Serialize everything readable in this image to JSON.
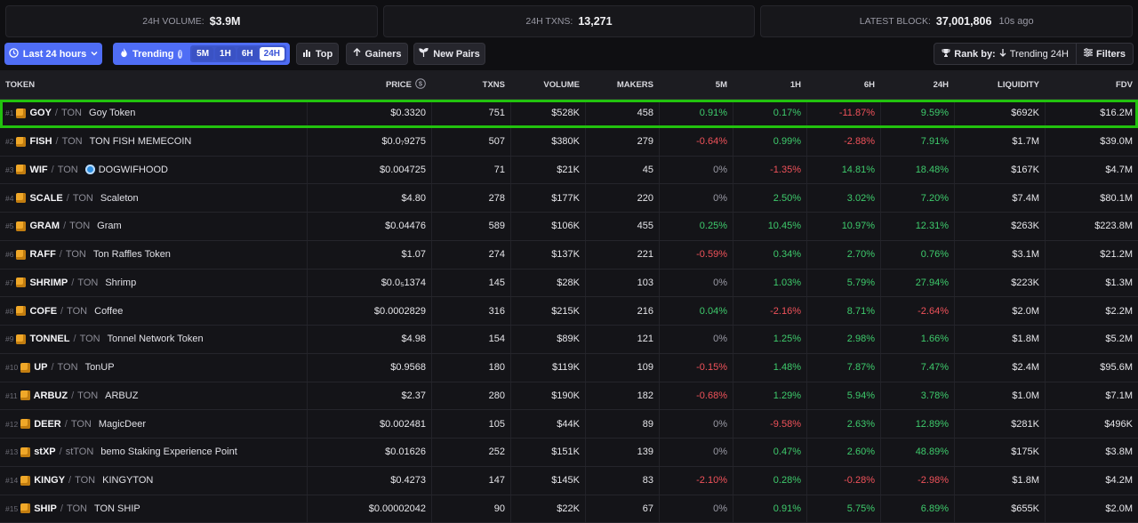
{
  "stats": {
    "volume_label": "24H VOLUME:",
    "volume_value": "$3.9M",
    "txns_label": "24H TXNS:",
    "txns_value": "13,271",
    "block_label": "LATEST BLOCK:",
    "block_value": "37,001,806",
    "block_ago": "10s ago"
  },
  "toolbar": {
    "timeframe": "Last 24 hours",
    "trending_label": "Trending",
    "trending_options": [
      "5M",
      "1H",
      "6H",
      "24H"
    ],
    "trending_active": "24H",
    "top_label": "Top",
    "gainers_label": "Gainers",
    "new_pairs_label": "New Pairs",
    "rank_by_label": "Rank by:",
    "rank_by_value": "Trending 24H",
    "filters_label": "Filters"
  },
  "table": {
    "headers": [
      "TOKEN",
      "PRICE",
      "TXNS",
      "VOLUME",
      "MAKERS",
      "5M",
      "1H",
      "6H",
      "24H",
      "LIQUIDITY",
      "FDV"
    ],
    "rows": [
      {
        "rank": "#1",
        "symbol": "GOY",
        "quote": "TON",
        "name": "Goy Token",
        "price": "$0.3320",
        "txns": "751",
        "volume": "$528K",
        "makers": "458",
        "m5": "0.91%",
        "h1": "0.17%",
        "h6": "-11.87%",
        "h24": "9.59%",
        "liquidity": "$692K",
        "fdv": "$16.2M"
      },
      {
        "rank": "#2",
        "symbol": "FISH",
        "quote": "TON",
        "name": "TON FISH MEMECOIN",
        "price": "$0.0₇9275",
        "txns": "507",
        "volume": "$380K",
        "makers": "279",
        "m5": "-0.64%",
        "h1": "0.99%",
        "h6": "-2.88%",
        "h24": "7.91%",
        "liquidity": "$1.7M",
        "fdv": "$39.0M"
      },
      {
        "rank": "#3",
        "symbol": "WIF",
        "quote": "TON",
        "name": "DOGWIFHOOD",
        "price": "$0.004725",
        "txns": "71",
        "volume": "$21K",
        "makers": "45",
        "m5": "0%",
        "h1": "-1.35%",
        "h6": "14.81%",
        "h24": "18.48%",
        "liquidity": "$167K",
        "fdv": "$4.7M"
      },
      {
        "rank": "#4",
        "symbol": "SCALE",
        "quote": "TON",
        "name": "Scaleton",
        "price": "$4.80",
        "txns": "278",
        "volume": "$177K",
        "makers": "220",
        "m5": "0%",
        "h1": "2.50%",
        "h6": "3.02%",
        "h24": "7.20%",
        "liquidity": "$7.4M",
        "fdv": "$80.1M"
      },
      {
        "rank": "#5",
        "symbol": "GRAM",
        "quote": "TON",
        "name": "Gram",
        "price": "$0.04476",
        "txns": "589",
        "volume": "$106K",
        "makers": "455",
        "m5": "0.25%",
        "h1": "10.45%",
        "h6": "10.97%",
        "h24": "12.31%",
        "liquidity": "$263K",
        "fdv": "$223.8M"
      },
      {
        "rank": "#6",
        "symbol": "RAFF",
        "quote": "TON",
        "name": "Ton Raffles Token",
        "price": "$1.07",
        "txns": "274",
        "volume": "$137K",
        "makers": "221",
        "m5": "-0.59%",
        "h1": "0.34%",
        "h6": "2.70%",
        "h24": "0.76%",
        "liquidity": "$3.1M",
        "fdv": "$21.2M"
      },
      {
        "rank": "#7",
        "symbol": "SHRIMP",
        "quote": "TON",
        "name": "Shrimp",
        "price": "$0.0₅1374",
        "txns": "145",
        "volume": "$28K",
        "makers": "103",
        "m5": "0%",
        "h1": "1.03%",
        "h6": "5.79%",
        "h24": "27.94%",
        "liquidity": "$223K",
        "fdv": "$1.3M"
      },
      {
        "rank": "#8",
        "symbol": "COFE",
        "quote": "TON",
        "name": "Coffee",
        "price": "$0.0002829",
        "txns": "316",
        "volume": "$215K",
        "makers": "216",
        "m5": "0.04%",
        "h1": "-2.16%",
        "h6": "8.71%",
        "h24": "-2.64%",
        "liquidity": "$2.0M",
        "fdv": "$2.2M"
      },
      {
        "rank": "#9",
        "symbol": "TONNEL",
        "quote": "TON",
        "name": "Tonnel Network Token",
        "price": "$4.98",
        "txns": "154",
        "volume": "$89K",
        "makers": "121",
        "m5": "0%",
        "h1": "1.25%",
        "h6": "2.98%",
        "h24": "1.66%",
        "liquidity": "$1.8M",
        "fdv": "$5.2M"
      },
      {
        "rank": "#10",
        "symbol": "UP",
        "quote": "TON",
        "name": "TonUP",
        "price": "$0.9568",
        "txns": "180",
        "volume": "$119K",
        "makers": "109",
        "m5": "-0.15%",
        "h1": "1.48%",
        "h6": "7.87%",
        "h24": "7.47%",
        "liquidity": "$2.4M",
        "fdv": "$95.6M"
      },
      {
        "rank": "#11",
        "symbol": "ARBUZ",
        "quote": "TON",
        "name": "ARBUZ",
        "price": "$2.37",
        "txns": "280",
        "volume": "$190K",
        "makers": "182",
        "m5": "-0.68%",
        "h1": "1.29%",
        "h6": "5.94%",
        "h24": "3.78%",
        "liquidity": "$1.0M",
        "fdv": "$7.1M"
      },
      {
        "rank": "#12",
        "symbol": "DEER",
        "quote": "TON",
        "name": "MagicDeer",
        "price": "$0.002481",
        "txns": "105",
        "volume": "$44K",
        "makers": "89",
        "m5": "0%",
        "h1": "-9.58%",
        "h6": "2.63%",
        "h24": "12.89%",
        "liquidity": "$281K",
        "fdv": "$496K"
      },
      {
        "rank": "#13",
        "symbol": "stXP",
        "quote": "stTON",
        "name": "bemo Staking Experience Point",
        "price": "$0.01626",
        "txns": "252",
        "volume": "$151K",
        "makers": "139",
        "m5": "0%",
        "h1": "0.47%",
        "h6": "2.60%",
        "h24": "48.89%",
        "liquidity": "$175K",
        "fdv": "$3.8M"
      },
      {
        "rank": "#14",
        "symbol": "KINGY",
        "quote": "TON",
        "name": "KINGYTON",
        "price": "$0.4273",
        "txns": "147",
        "volume": "$145K",
        "makers": "83",
        "m5": "-2.10%",
        "h1": "0.28%",
        "h6": "-0.28%",
        "h24": "-2.98%",
        "liquidity": "$1.8M",
        "fdv": "$4.2M"
      },
      {
        "rank": "#15",
        "symbol": "SHIP",
        "quote": "TON",
        "name": "TON SHIP",
        "price": "$0.00002042",
        "txns": "90",
        "volume": "$22K",
        "makers": "67",
        "m5": "0%",
        "h1": "0.91%",
        "h6": "5.75%",
        "h24": "6.89%",
        "liquidity": "$655K",
        "fdv": "$2.0M"
      }
    ]
  },
  "colors": {
    "positive": "#3ecb6c",
    "negative": "#f0525a",
    "accent": "#4f6df5",
    "highlight": "#22c20e"
  },
  "icons": {
    "token": "cube-icon",
    "dogwifhood": "dog-avatar-icon",
    "price_header": "dollar-circle-icon",
    "rank_by": "trophy-icon",
    "filters": "sliders-icon",
    "top": "bar-chart-icon",
    "gainers": "arrow-up-icon",
    "new_pairs": "sprout-icon"
  }
}
